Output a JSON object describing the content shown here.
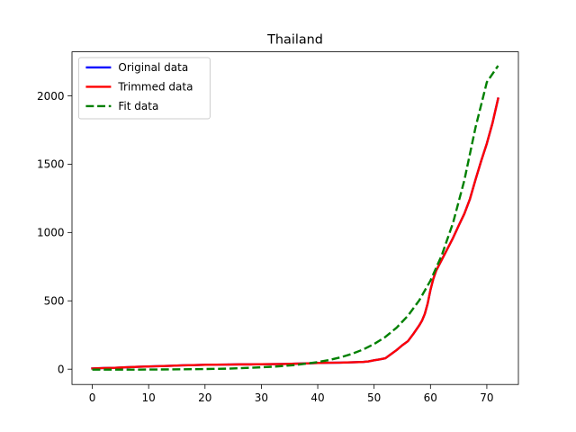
{
  "chart_data": {
    "type": "line",
    "title": "Thailand",
    "xlabel": "",
    "ylabel": "",
    "xlim": [
      -3.6,
      75.6
    ],
    "ylim": [
      -112,
      2322
    ],
    "xticks": [
      0,
      10,
      20,
      30,
      40,
      50,
      60,
      70
    ],
    "yticks": [
      0,
      500,
      1000,
      1500,
      2000
    ],
    "grid": false,
    "legend_position": "top-left",
    "series": [
      {
        "name": "Original data",
        "color": "#0000ff",
        "style": "solid",
        "x": [
          0,
          2,
          4,
          6,
          8,
          10,
          12,
          14,
          16,
          18,
          20,
          22,
          24,
          26,
          28,
          30,
          32,
          34,
          36,
          38,
          40,
          42,
          44,
          46,
          48,
          49,
          50,
          51,
          52,
          53,
          54,
          55,
          56,
          57,
          58,
          58.5,
          59,
          59.5,
          60,
          60.5,
          61,
          62,
          63,
          64,
          65,
          66,
          67,
          68,
          69,
          70,
          71,
          72
        ],
        "y": [
          5,
          8,
          10,
          14,
          17,
          20,
          22,
          25,
          28,
          30,
          32,
          33,
          34,
          35,
          35,
          36,
          37,
          38,
          40,
          42,
          45,
          47,
          48,
          50,
          53,
          57,
          65,
          72,
          80,
          110,
          140,
          175,
          205,
          260,
          320,
          355,
          405,
          480,
          580,
          660,
          720,
          800,
          880,
          960,
          1050,
          1136,
          1245,
          1388,
          1524,
          1651,
          1800,
          1980
        ]
      },
      {
        "name": "Trimmed data",
        "color": "#ff0000",
        "style": "solid",
        "x": [
          0,
          2,
          4,
          6,
          8,
          10,
          12,
          14,
          16,
          18,
          20,
          22,
          24,
          26,
          28,
          30,
          32,
          34,
          36,
          38,
          40,
          42,
          44,
          46,
          48,
          49,
          50,
          51,
          52,
          53,
          54,
          55,
          56,
          57,
          58,
          58.5,
          59,
          59.5,
          60,
          60.5,
          61,
          62,
          63,
          64,
          65,
          66,
          67,
          68,
          69,
          70,
          71,
          72
        ],
        "y": [
          5,
          8,
          10,
          14,
          17,
          20,
          22,
          25,
          28,
          30,
          32,
          33,
          34,
          35,
          35,
          36,
          37,
          38,
          40,
          42,
          45,
          47,
          48,
          50,
          53,
          57,
          65,
          72,
          80,
          110,
          140,
          175,
          205,
          260,
          320,
          355,
          405,
          480,
          580,
          660,
          720,
          800,
          880,
          960,
          1050,
          1136,
          1245,
          1388,
          1524,
          1651,
          1800,
          1980
        ]
      },
      {
        "name": "Fit data",
        "color": "#008000",
        "style": "dashed",
        "x": [
          0,
          4,
          8,
          12,
          16,
          20,
          24,
          28,
          32,
          36,
          40,
          42,
          44,
          46,
          48,
          50,
          52,
          54,
          56,
          58,
          60,
          62,
          64,
          66,
          68,
          70,
          72
        ],
        "y": [
          -3,
          -3,
          -3,
          -2,
          -1,
          1,
          4,
          10,
          18,
          30,
          52,
          67,
          86,
          111,
          143,
          184,
          236,
          304,
          391,
          503,
          648,
          833,
          1070,
          1380,
          1770,
          2100,
          2220
        ]
      }
    ]
  }
}
